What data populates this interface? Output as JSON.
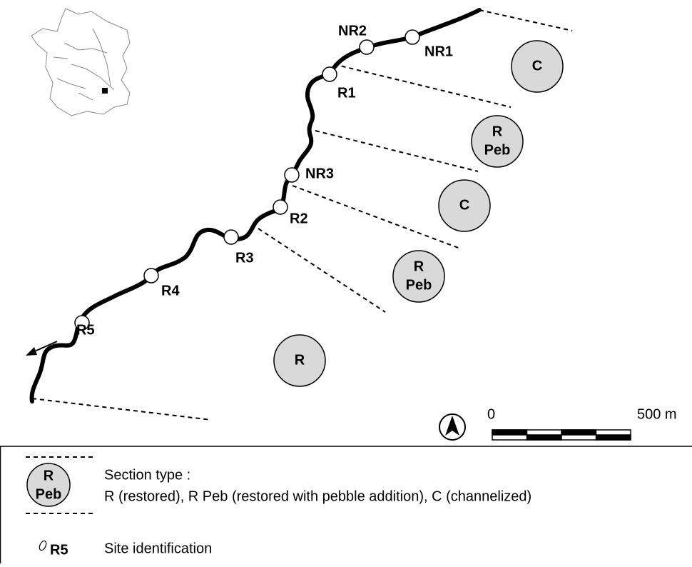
{
  "sites": [
    "NR1",
    "NR2",
    "R1",
    "NR3",
    "R2",
    "R3",
    "R4",
    "R5"
  ],
  "sections": [
    [
      "C"
    ],
    [
      "R",
      "Peb"
    ],
    [
      "C"
    ],
    [
      "R",
      "Peb"
    ],
    [
      "R"
    ]
  ],
  "scale": {
    "start": "0",
    "end": "500 m"
  },
  "legend": {
    "section_symbol": [
      "R",
      "Peb"
    ],
    "section_title": "Section type :",
    "section_description": "R (restored), R Peb (restored with pebble addition), C (channelized)",
    "site_symbol": "R5",
    "site_text": "Site identification"
  }
}
